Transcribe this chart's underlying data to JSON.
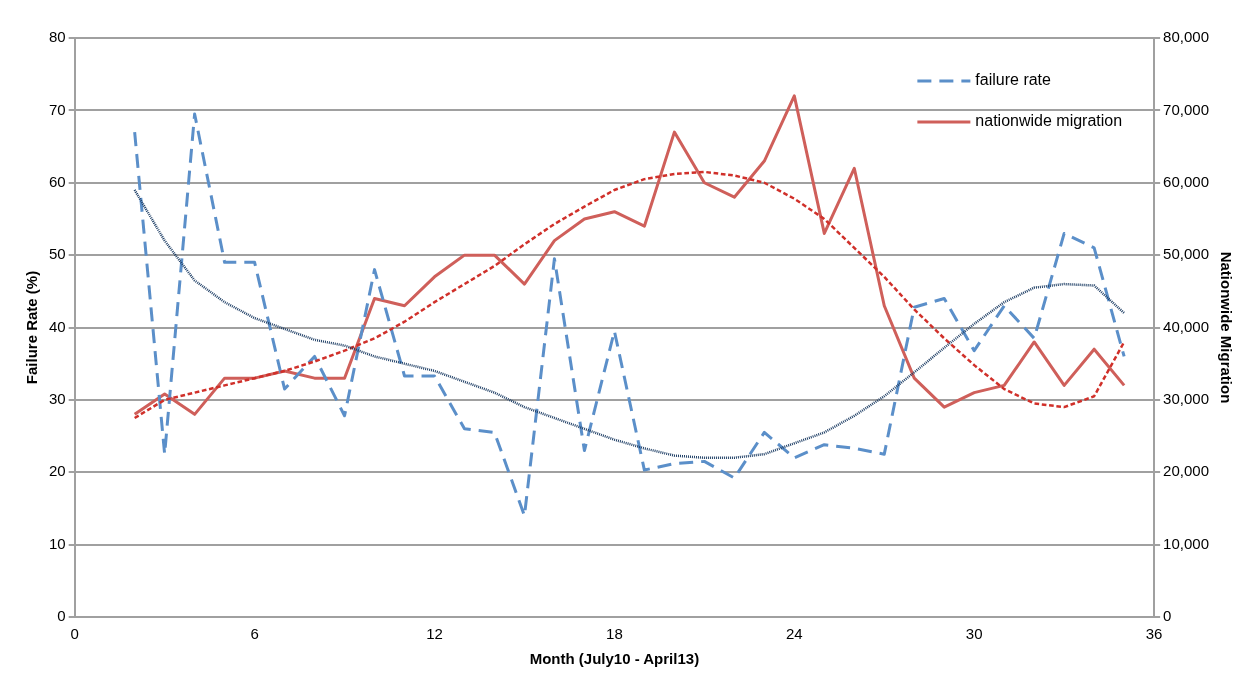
{
  "chart_data": {
    "type": "line",
    "xlabel": "Month (July10 - April13)",
    "ylabel": "Failure Rate (%)",
    "y2label": "Nationwide Migration",
    "x": [
      2,
      3,
      4,
      5,
      6,
      7,
      8,
      9,
      10,
      11,
      12,
      13,
      14,
      15,
      16,
      17,
      18,
      19,
      20,
      21,
      22,
      23,
      24,
      25,
      26,
      27,
      28,
      29,
      30,
      31,
      32,
      33,
      34,
      35
    ],
    "xlim": [
      0,
      36
    ],
    "xticks": [
      0,
      6,
      12,
      18,
      24,
      30,
      36
    ],
    "ylim": [
      0,
      80
    ],
    "yticks": [
      0,
      10,
      20,
      30,
      40,
      50,
      60,
      70,
      80
    ],
    "y2lim": [
      0,
      80000
    ],
    "y2ticks": [
      {
        "value": 0,
        "label": "0"
      },
      {
        "value": 10000,
        "label": "10,000"
      },
      {
        "value": 20000,
        "label": "20,000"
      },
      {
        "value": 30000,
        "label": "30,000"
      },
      {
        "value": 40000,
        "label": "40,000"
      },
      {
        "value": 50000,
        "label": "50,000"
      },
      {
        "value": 60000,
        "label": "60,000"
      },
      {
        "value": 70000,
        "label": "70,000"
      },
      {
        "value": 80000,
        "label": "80,000"
      }
    ],
    "grid": "y",
    "legend": "top right",
    "marker": "none",
    "series": [
      {
        "name": "failure rate",
        "color": "#5b8fc9",
        "line_style": "dashed",
        "values": [
          67,
          22.5,
          69.5,
          49,
          49,
          31.5,
          36,
          27.8,
          48,
          33.3,
          33.3,
          26,
          25.5,
          14,
          49.5,
          23,
          39.5,
          20.3,
          21.2,
          21.5,
          19.2,
          25.5,
          22,
          23.8,
          23.3,
          22.5,
          42.8,
          44,
          36.8,
          43,
          38.5,
          53,
          51,
          36
        ]
      },
      {
        "name": "nationwide migration",
        "color": "#cf5f5a",
        "line_style": "solid",
        "axis": "y2",
        "values": [
          28000,
          30800,
          28000,
          33000,
          33000,
          34000,
          33000,
          33000,
          44000,
          43000,
          47000,
          50000,
          50000,
          46000,
          52000,
          55000,
          56000,
          54000,
          67000,
          60000,
          58000,
          63000,
          72000,
          53000,
          62000,
          43000,
          33000,
          29000,
          31000,
          32000,
          38000,
          32000,
          37000,
          32000
        ]
      },
      {
        "color": "#1f3f66",
        "line_style": "dotted",
        "values": [
          59,
          52,
          46.5,
          43.5,
          41.3,
          39.8,
          38.3,
          37.5,
          36,
          35,
          34,
          32.5,
          31,
          29,
          27.5,
          26,
          24.5,
          23.3,
          22.3,
          22,
          22,
          22.5,
          24,
          25.5,
          27.8,
          30.5,
          33.8,
          37.2,
          40.5,
          43.5,
          45.5,
          46,
          45.8,
          42
        ]
      },
      {
        "color": "#d0302a",
        "line_style": "dashed",
        "axis": "y2",
        "values": [
          27500,
          30000,
          31000,
          32000,
          33000,
          34000,
          35300,
          36800,
          38500,
          40800,
          43500,
          46000,
          48500,
          51500,
          54300,
          56700,
          59000,
          60500,
          61200,
          61500,
          61000,
          60000,
          57800,
          55000,
          51000,
          47000,
          42500,
          38500,
          34800,
          31500,
          29500,
          29000,
          30500,
          38000
        ]
      }
    ]
  }
}
